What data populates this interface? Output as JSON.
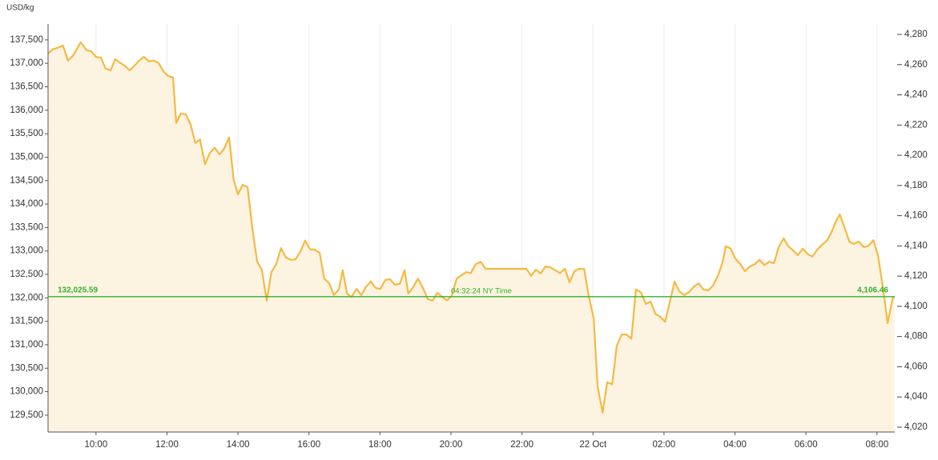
{
  "chart_data": {
    "type": "area",
    "y_label": "USD/kg",
    "color": "#f5b942",
    "fill_color": "#fdf3e1",
    "grid": "x",
    "xlim": [
      8.65,
      32.5
    ],
    "xticks": [
      {
        "value": 10,
        "label": "10:00"
      },
      {
        "value": 12,
        "label": "12:00"
      },
      {
        "value": 14,
        "label": "14:00"
      },
      {
        "value": 16,
        "label": "16:00"
      },
      {
        "value": 18,
        "label": "18:00"
      },
      {
        "value": 20,
        "label": "20:00"
      },
      {
        "value": 22,
        "label": "22:00"
      },
      {
        "value": 24,
        "label": "22 Oct"
      },
      {
        "value": 26,
        "label": "02:00"
      },
      {
        "value": 28,
        "label": "04:00"
      },
      {
        "value": 30,
        "label": "06:00"
      },
      {
        "value": 32,
        "label": "08:00"
      }
    ],
    "ylim": [
      129140,
      138180
    ],
    "yticks": [
      {
        "value": 129500,
        "label": "129,500"
      },
      {
        "value": 130000,
        "label": "130,000"
      },
      {
        "value": 130500,
        "label": "130,500"
      },
      {
        "value": 131000,
        "label": "131,000"
      },
      {
        "value": 131500,
        "label": "131,500"
      },
      {
        "value": 132000,
        "label": "132,000"
      },
      {
        "value": 132500,
        "label": "132,500"
      },
      {
        "value": 133000,
        "label": "133,000"
      },
      {
        "value": 133500,
        "label": "133,500"
      },
      {
        "value": 134000,
        "label": "134,000"
      },
      {
        "value": 134500,
        "label": "134,500"
      },
      {
        "value": 135000,
        "label": "135,000"
      },
      {
        "value": 135500,
        "label": "135,500"
      },
      {
        "value": 136000,
        "label": "136,000"
      },
      {
        "value": 136500,
        "label": "136,500"
      },
      {
        "value": 137000,
        "label": "137,000"
      },
      {
        "value": 137500,
        "label": "137,500"
      }
    ],
    "y2lim": [
      4016.8,
      4297.5
    ],
    "y2ticks": [
      {
        "value": 4020,
        "label": "4,020"
      },
      {
        "value": 4040,
        "label": "4,040"
      },
      {
        "value": 4060,
        "label": "4,060"
      },
      {
        "value": 4080,
        "label": "4,080"
      },
      {
        "value": 4100,
        "label": "4,100"
      },
      {
        "value": 4120,
        "label": "4,120"
      },
      {
        "value": 4140,
        "label": "4,140"
      },
      {
        "value": 4160,
        "label": "4,160"
      },
      {
        "value": 4180,
        "label": "4,180"
      },
      {
        "value": 4200,
        "label": "4,200"
      },
      {
        "value": 4220,
        "label": "4,220"
      },
      {
        "value": 4240,
        "label": "4,240"
      },
      {
        "value": 4260,
        "label": "4,260"
      },
      {
        "value": 4280,
        "label": "4,280"
      }
    ],
    "reference": {
      "color": "#2fb52f",
      "y": 132025.59,
      "y_label": "132,025.59",
      "y2": 4106.46,
      "y2_label": "4,106.46",
      "time_label": "04:32:24 NY Time"
    },
    "x": [
      8.65,
      8.78,
      8.92,
      9.07,
      9.21,
      9.35,
      9.57,
      9.73,
      9.86,
      10.0,
      10.14,
      10.27,
      10.41,
      10.54,
      10.68,
      10.81,
      10.95,
      11.08,
      11.22,
      11.35,
      11.49,
      11.63,
      11.76,
      11.9,
      12.03,
      12.17,
      12.26,
      12.39,
      12.53,
      12.66,
      12.8,
      12.93,
      13.07,
      13.21,
      13.34,
      13.48,
      13.61,
      13.75,
      13.88,
      14.0,
      14.13,
      14.27,
      14.4,
      14.54,
      14.67,
      14.81,
      14.94,
      15.08,
      15.21,
      15.35,
      15.49,
      15.62,
      15.76,
      15.89,
      16.03,
      16.16,
      16.3,
      16.43,
      16.57,
      16.7,
      16.84,
      16.95,
      17.07,
      17.2,
      17.34,
      17.47,
      17.61,
      17.74,
      17.88,
      18.01,
      18.15,
      18.28,
      18.42,
      18.56,
      18.69,
      18.8,
      18.94,
      19.07,
      19.21,
      19.35,
      19.48,
      19.62,
      19.75,
      19.89,
      20.02,
      20.16,
      20.29,
      20.43,
      20.56,
      20.7,
      20.84,
      20.97,
      21.11,
      21.29,
      21.51,
      21.74,
      21.96,
      22.12,
      22.26,
      22.39,
      22.53,
      22.66,
      22.8,
      22.93,
      23.07,
      23.21,
      23.34,
      23.48,
      23.61,
      23.75,
      23.88,
      24.02,
      24.13,
      24.27,
      24.4,
      24.54,
      24.67,
      24.81,
      24.94,
      25.08,
      25.21,
      25.35,
      25.49,
      25.62,
      25.76,
      25.89,
      26.03,
      26.16,
      26.3,
      26.43,
      26.57,
      26.7,
      26.84,
      26.98,
      27.11,
      27.25,
      27.38,
      27.52,
      27.65,
      27.74,
      27.88,
      28.01,
      28.15,
      28.28,
      28.42,
      28.56,
      28.69,
      28.83,
      28.96,
      29.1,
      29.23,
      29.37,
      29.5,
      29.64,
      29.77,
      29.91,
      30.05,
      30.18,
      30.32,
      30.45,
      30.59,
      30.72,
      30.86,
      30.95,
      31.08,
      31.22,
      31.35,
      31.49,
      31.63,
      31.76,
      31.9,
      32.03,
      32.17,
      32.3,
      32.44,
      32.49
    ],
    "values": [
      137210,
      137300,
      137330,
      137380,
      137060,
      137160,
      137450,
      137280,
      137260,
      137140,
      137120,
      136890,
      136850,
      137090,
      137010,
      136950,
      136850,
      136950,
      137060,
      137140,
      137040,
      137060,
      137010,
      136830,
      136730,
      136700,
      135730,
      135930,
      135910,
      135710,
      135300,
      135380,
      134850,
      135090,
      135200,
      135060,
      135180,
      135420,
      134510,
      134210,
      134410,
      134360,
      133520,
      132770,
      132600,
      131940,
      132550,
      132720,
      133060,
      132860,
      132810,
      132820,
      132990,
      133220,
      133030,
      133030,
      132960,
      132410,
      132310,
      132060,
      132180,
      132590,
      132090,
      132020,
      132190,
      132060,
      132240,
      132350,
      132210,
      132190,
      132380,
      132400,
      132280,
      132300,
      132590,
      132090,
      132230,
      132410,
      132210,
      131970,
      131940,
      132110,
      132020,
      131950,
      132040,
      132410,
      132480,
      132550,
      132530,
      132720,
      132770,
      132620,
      132620,
      132620,
      132620,
      132620,
      132620,
      132620,
      132470,
      132600,
      132520,
      132670,
      132650,
      132590,
      132530,
      132620,
      132330,
      132570,
      132620,
      132620,
      132040,
      131560,
      130110,
      129550,
      130200,
      130160,
      130980,
      131220,
      131220,
      131130,
      132180,
      132120,
      131870,
      131920,
      131660,
      131600,
      131490,
      131900,
      132350,
      132140,
      132060,
      132120,
      132240,
      132310,
      132180,
      132160,
      132260,
      132470,
      132760,
      133100,
      133050,
      132840,
      132720,
      132570,
      132670,
      132720,
      132810,
      132700,
      132770,
      132740,
      133080,
      133270,
      133100,
      133010,
      132910,
      133050,
      132930,
      132880,
      133030,
      133130,
      133220,
      133400,
      133660,
      133780,
      133510,
      133200,
      133150,
      133200,
      133080,
      133110,
      133230,
      132890,
      132210,
      131460,
      131990,
      132020
    ]
  }
}
